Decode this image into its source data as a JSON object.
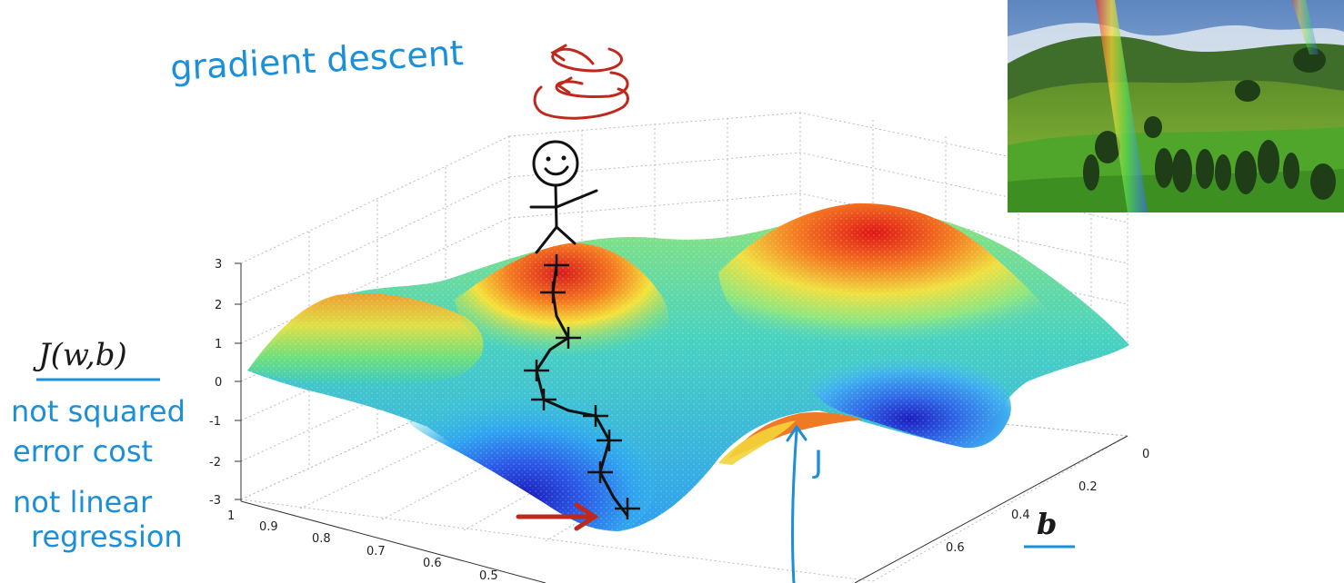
{
  "annotations": {
    "title": "gradient descent",
    "cost_label": "J(w,b)",
    "note_line1": "not squared",
    "note_line2": "error cost",
    "note_line3": "not linear",
    "note_line4": "regression",
    "axis_b": "b",
    "j_label": "J"
  },
  "axis_ticks": {
    "z": [
      "3",
      "2",
      "1",
      "0",
      "-1",
      "-2",
      "-3"
    ],
    "w": [
      "1",
      "0.9",
      "0.8",
      "0.7",
      "0.6",
      "0.5"
    ],
    "b": [
      "0",
      "0.2",
      "0.4",
      "0.6"
    ]
  },
  "colors": {
    "annotation_blue": "#1b8fd8",
    "arrow_red": "#c0281c",
    "path_black": "#111111"
  },
  "photo": {
    "icon": "landscape-rainbow-icon"
  }
}
